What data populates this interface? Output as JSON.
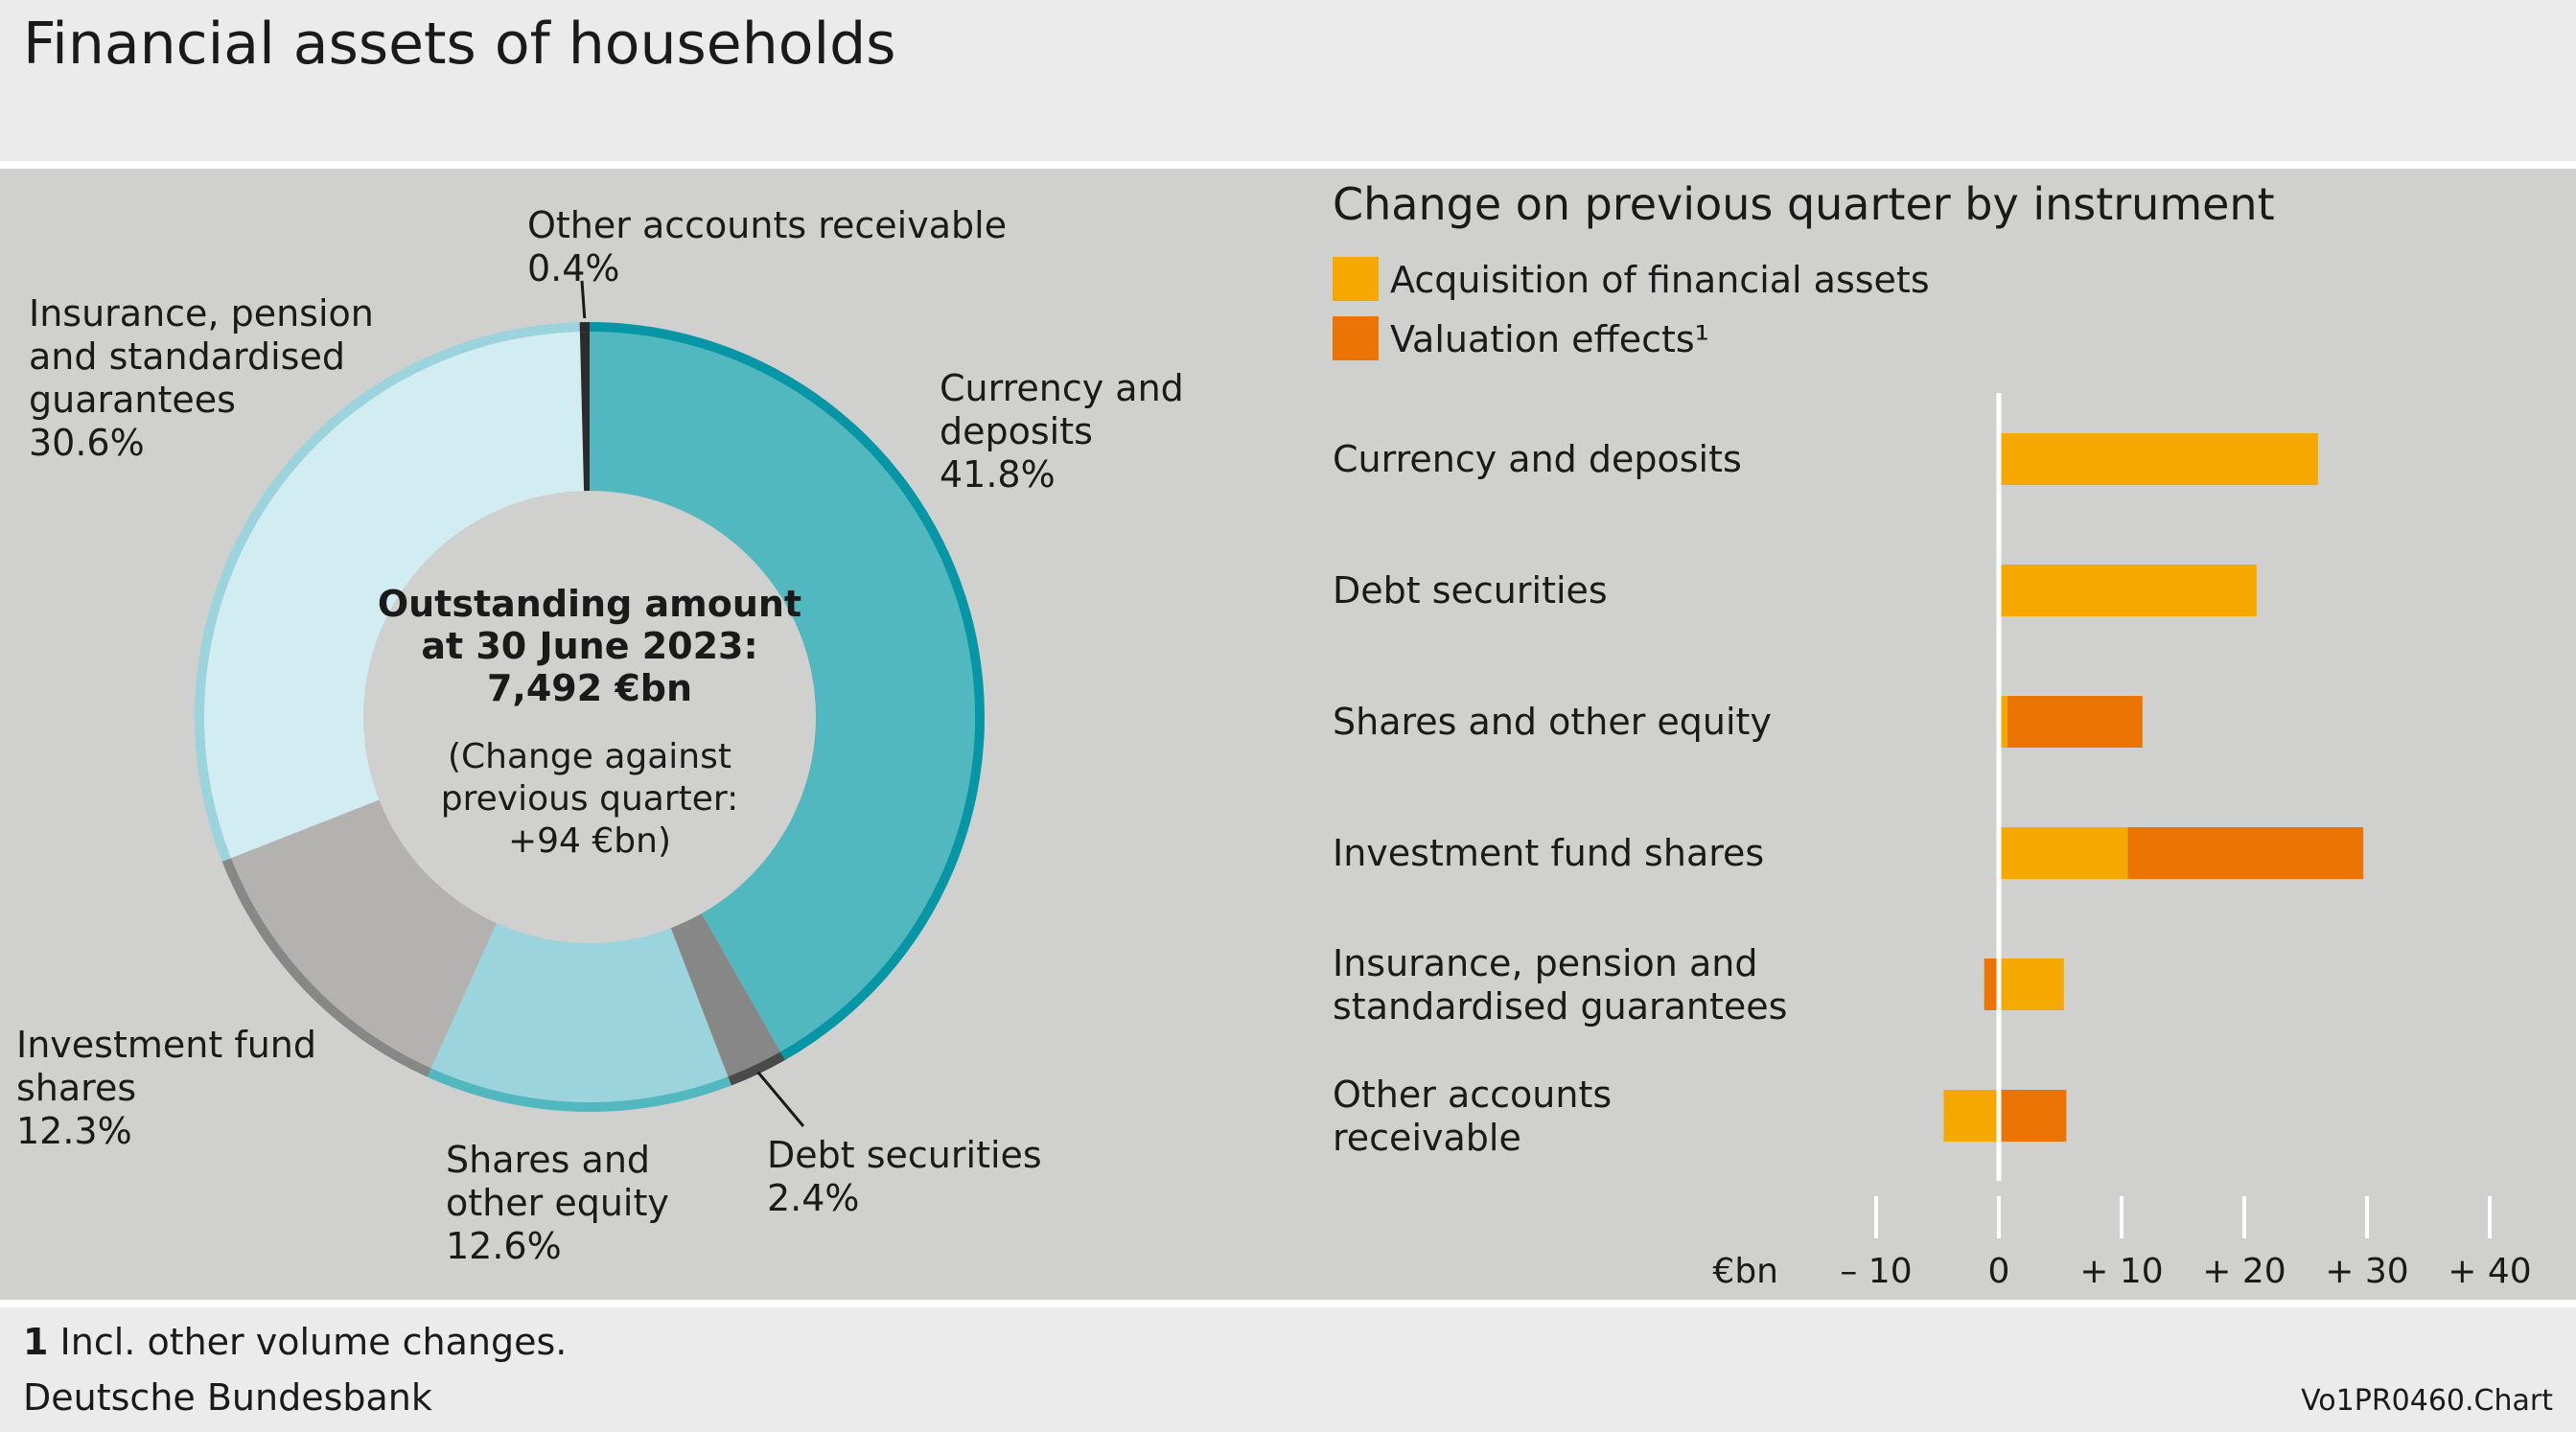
{
  "title": "Financial assets of households",
  "footnote": {
    "marker": "1",
    "text": "Incl. other volume changes."
  },
  "source": "Deutsche Bundesbank",
  "chart_code": "Vo1PR0460.Chart",
  "chart_data": [
    {
      "type": "pie",
      "subtype": "donut",
      "center_text": {
        "line1": "Outstanding amount",
        "line2": "at 30 June 2023:",
        "line3": "7,492 €bn",
        "line4": "(Change against",
        "line5": "previous quarter:",
        "line6": "+94 €bn)"
      },
      "slices": [
        {
          "name": "Currency and deposits",
          "label_lines": [
            "Currency and",
            "deposits"
          ],
          "value": 41.8,
          "value_label": "41.8%",
          "color": "#52b8c0",
          "edge_color": "#0796a5"
        },
        {
          "name": "Debt securities",
          "label_lines": [
            "Debt securities"
          ],
          "value": 2.4,
          "value_label": "2.4%",
          "color": "#878787",
          "edge_color": "#4a4a4a"
        },
        {
          "name": "Shares and other equity",
          "label_lines": [
            "Shares and",
            "other equity"
          ],
          "value": 12.6,
          "value_label": "12.6%",
          "color": "#9bd4dc",
          "edge_color": "#52b8c0"
        },
        {
          "name": "Investment fund shares",
          "label_lines": [
            "Investment fund",
            "shares"
          ],
          "value": 12.3,
          "value_label": "12.3%",
          "color": "#b3b2b1",
          "edge_color": "#878787"
        },
        {
          "name": "Insurance, pension and standardised guarantees",
          "label_lines": [
            "Insurance, pension",
            "and standardised",
            "guarantees"
          ],
          "value": 30.6,
          "value_label": "30.6%",
          "color": "#d1edf1",
          "edge_color": "#9bd4dc"
        },
        {
          "name": "Other accounts receivable",
          "label_lines": [
            "Other accounts receivable"
          ],
          "value": 0.4,
          "value_label": "0.4%",
          "color": "#2b2b2b",
          "edge_color": "#2b2b2b"
        }
      ]
    },
    {
      "type": "bar",
      "orientation": "horizontal",
      "stacked": true,
      "title": "Change on previous quarter by instrument",
      "unit": "€bn",
      "xlim": [
        -10,
        40
      ],
      "ticks": [
        -10,
        0,
        10,
        20,
        30,
        40
      ],
      "tick_labels": [
        "– 10",
        "0",
        "+ 10",
        "+ 20",
        "+ 30",
        "+ 40"
      ],
      "categories": [
        [
          "Currency and deposits"
        ],
        [
          "Debt securities"
        ],
        [
          "Shares and other equity"
        ],
        [
          "Investment fund shares"
        ],
        [
          "Insurance, pension and",
          "standardised guarantees"
        ],
        [
          "Other accounts",
          "receivable"
        ]
      ],
      "series": [
        {
          "name": "Acquisition of financial assets",
          "color": "#f5a800",
          "values": [
            26.0,
            21.0,
            0.7,
            10.5,
            5.3,
            -4.5
          ]
        },
        {
          "name": "Valuation effects¹",
          "color": "#ec7404",
          "values": [
            0,
            0,
            11.0,
            19.2,
            -1.2,
            5.5
          ]
        }
      ]
    }
  ]
}
